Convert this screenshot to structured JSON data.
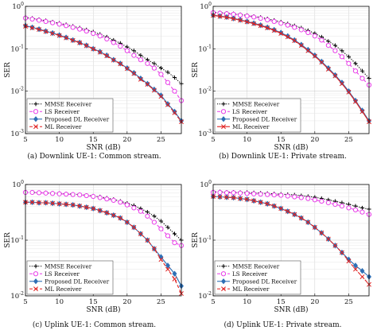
{
  "figure": {
    "captions": [
      "(a) Downlink UE-1: Common stream.",
      "(b) Downlink UE-1: Private stream.",
      "(c) Uplink UE-1: Common stream.",
      "(d) Uplink UE-1: Private stream."
    ]
  },
  "chart_data": [
    {
      "type": "line",
      "title": "",
      "xlabel": "SNR (dB)",
      "ylabel": "SER",
      "xlim": [
        5,
        28
      ],
      "ylim": [
        0.001,
        1
      ],
      "yscale": "log",
      "xticks": [
        "5",
        "10",
        "15",
        "20",
        "25"
      ],
      "yticks": [
        "10^-3",
        "10^-2",
        "10^-1",
        "10^0"
      ],
      "grid": true,
      "legend_position": "bottom-left",
      "x": [
        5,
        6,
        7,
        8,
        9,
        10,
        11,
        12,
        13,
        14,
        15,
        16,
        17,
        18,
        19,
        20,
        21,
        22,
        23,
        24,
        25,
        26,
        27,
        28
      ],
      "series": [
        {
          "name": "MMSE Receiver",
          "color": "#000000",
          "marker": "+",
          "dash": "dotted",
          "values": [
            0.55,
            0.52,
            0.49,
            0.46,
            0.43,
            0.4,
            0.37,
            0.34,
            0.31,
            0.28,
            0.25,
            0.22,
            0.19,
            0.16,
            0.135,
            0.11,
            0.09,
            0.07,
            0.055,
            0.045,
            0.035,
            0.028,
            0.021,
            0.015
          ]
        },
        {
          "name": "LS Receiver",
          "color": "#e83ce8",
          "marker": "circle",
          "dash": "dashed",
          "values": [
            0.53,
            0.5,
            0.47,
            0.44,
            0.41,
            0.38,
            0.35,
            0.32,
            0.29,
            0.26,
            0.23,
            0.2,
            0.17,
            0.14,
            0.115,
            0.09,
            0.07,
            0.055,
            0.045,
            0.035,
            0.025,
            0.016,
            0.01,
            0.006
          ]
        },
        {
          "name": "Proposed DL Receiver",
          "color": "#2e6fb5",
          "marker": "diamond",
          "dash": "solid",
          "values": [
            0.35,
            0.32,
            0.29,
            0.26,
            0.235,
            0.21,
            0.185,
            0.16,
            0.14,
            0.12,
            0.1,
            0.085,
            0.07,
            0.055,
            0.045,
            0.035,
            0.027,
            0.02,
            0.015,
            0.011,
            0.008,
            0.005,
            0.0033,
            0.002
          ]
        },
        {
          "name": "ML Receiver",
          "color": "#e02020",
          "marker": "x",
          "dash": "dashed",
          "values": [
            0.34,
            0.31,
            0.285,
            0.255,
            0.23,
            0.205,
            0.18,
            0.158,
            0.138,
            0.118,
            0.099,
            0.083,
            0.068,
            0.054,
            0.044,
            0.034,
            0.026,
            0.019,
            0.0145,
            0.0105,
            0.0075,
            0.0048,
            0.0031,
            0.0019
          ]
        }
      ]
    },
    {
      "type": "line",
      "title": "",
      "xlabel": "SNR (dB)",
      "ylabel": "SER",
      "xlim": [
        5,
        28
      ],
      "ylim": [
        0.001,
        1
      ],
      "yscale": "log",
      "xticks": [
        "5",
        "10",
        "15",
        "20",
        "25"
      ],
      "yticks": [
        "10^-3",
        "10^-2",
        "10^-1",
        "10^0"
      ],
      "grid": true,
      "legend_position": "bottom-left",
      "x": [
        5,
        6,
        7,
        8,
        9,
        10,
        11,
        12,
        13,
        14,
        15,
        16,
        17,
        18,
        19,
        20,
        21,
        22,
        23,
        24,
        25,
        26,
        27,
        28
      ],
      "series": [
        {
          "name": "MMSE Receiver",
          "color": "#000000",
          "marker": "+",
          "dash": "dotted",
          "values": [
            0.73,
            0.71,
            0.69,
            0.67,
            0.64,
            0.61,
            0.58,
            0.55,
            0.51,
            0.47,
            0.43,
            0.39,
            0.35,
            0.31,
            0.27,
            0.23,
            0.19,
            0.15,
            0.12,
            0.09,
            0.065,
            0.045,
            0.03,
            0.02
          ]
        },
        {
          "name": "LS Receiver",
          "color": "#e83ce8",
          "marker": "circle",
          "dash": "dashed",
          "values": [
            0.71,
            0.69,
            0.67,
            0.65,
            0.62,
            0.59,
            0.56,
            0.52,
            0.48,
            0.44,
            0.4,
            0.36,
            0.32,
            0.28,
            0.24,
            0.2,
            0.16,
            0.12,
            0.09,
            0.065,
            0.045,
            0.03,
            0.02,
            0.014
          ]
        },
        {
          "name": "Proposed DL Receiver",
          "color": "#2e6fb5",
          "marker": "diamond",
          "dash": "solid",
          "values": [
            0.62,
            0.59,
            0.56,
            0.52,
            0.48,
            0.44,
            0.4,
            0.36,
            0.32,
            0.28,
            0.24,
            0.2,
            0.16,
            0.125,
            0.095,
            0.07,
            0.05,
            0.035,
            0.024,
            0.016,
            0.01,
            0.006,
            0.0035,
            0.002
          ]
        },
        {
          "name": "ML Receiver",
          "color": "#e02020",
          "marker": "x",
          "dash": "solid",
          "values": [
            0.61,
            0.58,
            0.55,
            0.51,
            0.47,
            0.43,
            0.39,
            0.35,
            0.31,
            0.27,
            0.23,
            0.19,
            0.155,
            0.12,
            0.09,
            0.067,
            0.048,
            0.033,
            0.023,
            0.015,
            0.0095,
            0.0057,
            0.0033,
            0.0019
          ]
        }
      ]
    },
    {
      "type": "line",
      "title": "",
      "xlabel": "SNR (dB)",
      "ylabel": "SER",
      "xlim": [
        5,
        28
      ],
      "ylim": [
        0.01,
        1
      ],
      "yscale": "log",
      "xticks": [
        "5",
        "10",
        "15",
        "20",
        "25"
      ],
      "yticks": [
        "10^-2",
        "10^-1",
        "10^0"
      ],
      "grid": true,
      "legend_position": "bottom-left",
      "x": [
        5,
        6,
        7,
        8,
        9,
        10,
        11,
        12,
        13,
        14,
        15,
        16,
        17,
        18,
        19,
        20,
        21,
        22,
        23,
        24,
        25,
        26,
        27,
        28
      ],
      "series": [
        {
          "name": "MMSE Receiver",
          "color": "#000000",
          "marker": "+",
          "dash": "dotted",
          "values": [
            0.72,
            0.72,
            0.71,
            0.71,
            0.7,
            0.69,
            0.68,
            0.67,
            0.66,
            0.64,
            0.62,
            0.6,
            0.57,
            0.54,
            0.5,
            0.46,
            0.42,
            0.37,
            0.32,
            0.27,
            0.22,
            0.17,
            0.13,
            0.1
          ]
        },
        {
          "name": "LS Receiver",
          "color": "#e83ce8",
          "marker": "circle",
          "dash": "dashed",
          "values": [
            0.72,
            0.72,
            0.71,
            0.7,
            0.69,
            0.68,
            0.67,
            0.66,
            0.65,
            0.63,
            0.61,
            0.58,
            0.55,
            0.52,
            0.48,
            0.43,
            0.38,
            0.33,
            0.27,
            0.21,
            0.16,
            0.12,
            0.09,
            0.08
          ]
        },
        {
          "name": "Proposed DL Receiver",
          "color": "#2e6fb5",
          "marker": "diamond",
          "dash": "solid",
          "values": [
            0.48,
            0.48,
            0.47,
            0.47,
            0.46,
            0.45,
            0.44,
            0.43,
            0.41,
            0.39,
            0.37,
            0.34,
            0.31,
            0.28,
            0.25,
            0.21,
            0.17,
            0.13,
            0.1,
            0.07,
            0.05,
            0.035,
            0.025,
            0.015
          ]
        },
        {
          "name": "ML Receiver",
          "color": "#e02020",
          "marker": "x",
          "dash": "dashed",
          "values": [
            0.48,
            0.48,
            0.47,
            0.47,
            0.46,
            0.45,
            0.44,
            0.43,
            0.41,
            0.39,
            0.37,
            0.34,
            0.31,
            0.28,
            0.25,
            0.21,
            0.17,
            0.13,
            0.1,
            0.07,
            0.045,
            0.03,
            0.02,
            0.011
          ]
        }
      ]
    },
    {
      "type": "line",
      "title": "",
      "xlabel": "SNR (dB)",
      "ylabel": "SER",
      "xlim": [
        5,
        28
      ],
      "ylim": [
        0.01,
        1
      ],
      "yscale": "log",
      "xticks": [
        "5",
        "10",
        "15",
        "20",
        "25"
      ],
      "yticks": [
        "10^-2",
        "10^-1",
        "10^0"
      ],
      "grid": true,
      "legend_position": "bottom-left",
      "x": [
        5,
        6,
        7,
        8,
        9,
        10,
        11,
        12,
        13,
        14,
        15,
        16,
        17,
        18,
        19,
        20,
        21,
        22,
        23,
        24,
        25,
        26,
        27,
        28
      ],
      "series": [
        {
          "name": "MMSE Receiver",
          "color": "#000000",
          "marker": "+",
          "dash": "dotted",
          "values": [
            0.74,
            0.74,
            0.73,
            0.73,
            0.72,
            0.72,
            0.71,
            0.7,
            0.69,
            0.68,
            0.67,
            0.66,
            0.65,
            0.63,
            0.61,
            0.59,
            0.56,
            0.53,
            0.5,
            0.47,
            0.44,
            0.41,
            0.38,
            0.36
          ]
        },
        {
          "name": "LS Receiver",
          "color": "#e83ce8",
          "marker": "circle",
          "dash": "dashed",
          "values": [
            0.72,
            0.72,
            0.71,
            0.71,
            0.7,
            0.69,
            0.68,
            0.67,
            0.66,
            0.65,
            0.64,
            0.62,
            0.6,
            0.58,
            0.56,
            0.53,
            0.5,
            0.47,
            0.44,
            0.41,
            0.38,
            0.35,
            0.32,
            0.29
          ]
        },
        {
          "name": "Proposed DL Receiver",
          "color": "#2e6fb5",
          "marker": "diamond",
          "dash": "solid",
          "values": [
            0.61,
            0.6,
            0.59,
            0.58,
            0.56,
            0.54,
            0.51,
            0.48,
            0.45,
            0.41,
            0.37,
            0.33,
            0.29,
            0.25,
            0.21,
            0.17,
            0.135,
            0.105,
            0.08,
            0.06,
            0.045,
            0.035,
            0.028,
            0.022
          ]
        },
        {
          "name": "ML Receiver",
          "color": "#e02020",
          "marker": "x",
          "dash": "dashed",
          "values": [
            0.61,
            0.6,
            0.59,
            0.58,
            0.56,
            0.54,
            0.51,
            0.48,
            0.45,
            0.41,
            0.37,
            0.33,
            0.29,
            0.25,
            0.21,
            0.17,
            0.135,
            0.105,
            0.08,
            0.06,
            0.042,
            0.03,
            0.022,
            0.016
          ]
        }
      ]
    }
  ]
}
